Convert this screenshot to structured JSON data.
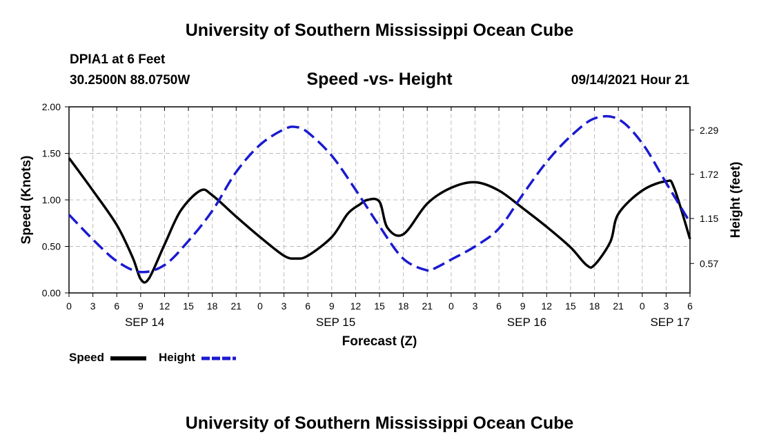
{
  "header": {
    "title": "University of Southern Mississippi Ocean Cube",
    "station": "DPIA1 at 6 Feet",
    "coords": "30.2500N  88.0750W",
    "subtitle": "Speed -vs- Height",
    "issued": "09/14/2021 Hour 21"
  },
  "footer": {
    "title": "University of Southern Mississippi Ocean Cube"
  },
  "legend": {
    "speed_label": "Speed",
    "height_label": "Height"
  },
  "chart_data": {
    "type": "line",
    "title": "Speed -vs- Height",
    "xlabel": "Forecast (Z)",
    "ylabel": "Speed (Knots)",
    "y2label": "Height (feet)",
    "xlim": [
      0,
      78
    ],
    "ylim": [
      0,
      2.0
    ],
    "y2lim": [
      0.19,
      2.59
    ],
    "x_tick_labels": [
      "0",
      "3",
      "6",
      "9",
      "12",
      "15",
      "18",
      "21",
      "0",
      "3",
      "6",
      "9",
      "12",
      "15",
      "18",
      "21",
      "0",
      "3",
      "6",
      "9",
      "12",
      "15",
      "18",
      "21",
      "0",
      "3",
      "6"
    ],
    "date_labels": [
      {
        "label": "SEP 14",
        "x": 9.5
      },
      {
        "label": "SEP 15",
        "x": 33.5
      },
      {
        "label": "SEP 16",
        "x": 57.5
      },
      {
        "label": "SEP 17",
        "x": 75.5
      }
    ],
    "y_tick_labels": [
      "0.00",
      "0.50",
      "1.00",
      "1.50",
      "2.00"
    ],
    "y_ticks": [
      0,
      0.5,
      1.0,
      1.5,
      2.0
    ],
    "y2_tick_labels": [
      "0.57",
      "1.15",
      "1.72",
      "2.29"
    ],
    "y2_ticks": [
      0.57,
      1.15,
      1.72,
      2.29
    ],
    "grid": true,
    "colors": {
      "speed": "#000000",
      "height": "#1a1ad0",
      "grid": "#bbbbbb"
    },
    "series": [
      {
        "name": "Speed",
        "axis": "left",
        "x": [
          0,
          3,
          6,
          8,
          9,
          10,
          12,
          14,
          16.5,
          18,
          21,
          24,
          27,
          28.5,
          30,
          33,
          35,
          36.5,
          37.5,
          39,
          40,
          42,
          45,
          48,
          51,
          54,
          57,
          60,
          63,
          65,
          66,
          68,
          69,
          72,
          75,
          76,
          78
        ],
        "values": [
          1.45,
          1.1,
          0.73,
          0.38,
          0.15,
          0.15,
          0.52,
          0.88,
          1.1,
          1.05,
          0.82,
          0.6,
          0.4,
          0.37,
          0.4,
          0.6,
          0.85,
          0.95,
          1.0,
          0.98,
          0.7,
          0.63,
          0.96,
          1.13,
          1.19,
          1.1,
          0.91,
          0.71,
          0.49,
          0.3,
          0.3,
          0.55,
          0.85,
          1.1,
          1.2,
          1.13,
          0.58
        ]
      },
      {
        "name": "Height",
        "axis": "right",
        "x": [
          0,
          3,
          6,
          9,
          12,
          15,
          18,
          21,
          24,
          27,
          28.5,
          30,
          33,
          36,
          39,
          42,
          45,
          46,
          48,
          51,
          54,
          57,
          60,
          63,
          66,
          69,
          72,
          75,
          78
        ],
        "values": [
          1.2,
          0.88,
          0.6,
          0.46,
          0.55,
          0.86,
          1.25,
          1.75,
          2.1,
          2.3,
          2.33,
          2.26,
          1.96,
          1.52,
          1.05,
          0.63,
          0.48,
          0.51,
          0.62,
          0.79,
          1.02,
          1.46,
          1.88,
          2.21,
          2.44,
          2.43,
          2.12,
          1.61,
          1.1
        ]
      }
    ]
  }
}
